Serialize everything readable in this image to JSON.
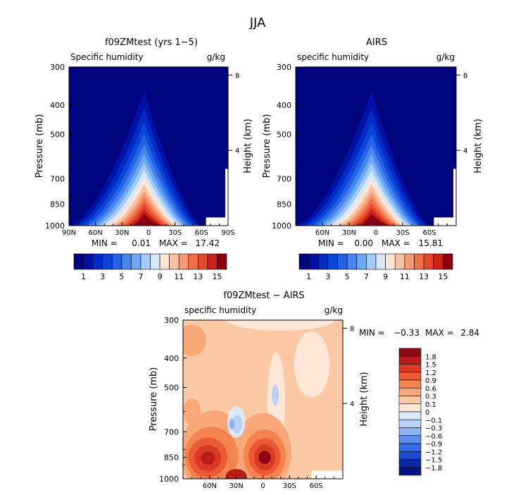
{
  "figure": {
    "title": "JJA"
  },
  "chart_data": [
    {
      "id": "model",
      "type": "heatmap",
      "title": "f09ZMtest (yrs 1−5)",
      "subtitle_left": "Specific humidity",
      "units": "g/kg",
      "ylabel": "Pressure (mb)",
      "ylabel_right": "Height (km)",
      "x_ticks": [
        "90N",
        "60N",
        "30N",
        "0",
        "30S",
        "60S",
        "90S"
      ],
      "x_tick_values": [
        90,
        60,
        30,
        0,
        -30,
        -60,
        -90
      ],
      "xlim": [
        90,
        -90
      ],
      "y_ticks": [
        "300",
        "400",
        "500",
        "700",
        "850",
        "1000"
      ],
      "y_tick_values": [
        300,
        400,
        500,
        700,
        850,
        1000
      ],
      "ylim": [
        300,
        1000
      ],
      "y_right_ticks": [
        "8",
        "4"
      ],
      "y_right_values": [
        8,
        4
      ],
      "min_label": "MIN =",
      "min_value": "0.01",
      "max_label": "MAX =",
      "max_value": "17.42",
      "peak": {
        "lat": 5,
        "value": 17.42
      },
      "contour_levels": [
        1,
        2,
        3,
        4,
        5,
        6,
        7,
        8,
        9,
        10,
        11,
        12,
        13,
        14,
        15,
        16
      ],
      "colorbar_labels": [
        "1",
        "3",
        "5",
        "7",
        "9",
        "11",
        "13",
        "15"
      ]
    },
    {
      "id": "obs",
      "type": "heatmap",
      "title": "AIRS",
      "subtitle_left": "specific humidity",
      "units": "g/kg",
      "ylabel": "Pressure (mb)",
      "ylabel_right": "Height (km)",
      "x_ticks": [
        "60N",
        "30N",
        "0",
        "30S",
        "60S"
      ],
      "x_tick_values": [
        60,
        30,
        0,
        -30,
        -60
      ],
      "xlim": [
        90,
        -90
      ],
      "y_ticks": [
        "300",
        "400",
        "500",
        "700",
        "850",
        "1000"
      ],
      "y_tick_values": [
        300,
        400,
        500,
        700,
        850,
        1000
      ],
      "ylim": [
        300,
        1000
      ],
      "y_right_ticks": [
        "8",
        "4"
      ],
      "y_right_values": [
        8,
        4
      ],
      "min_label": "MIN =",
      "min_value": "0.00",
      "max_label": "MAX =",
      "max_value": "15.81",
      "peak": {
        "lat": 5,
        "value": 15.81
      },
      "contour_levels": [
        1,
        2,
        3,
        4,
        5,
        6,
        7,
        8,
        9,
        10,
        11,
        12,
        13,
        14,
        15,
        16
      ],
      "colorbar_labels": [
        "1",
        "3",
        "5",
        "7",
        "9",
        "11",
        "13",
        "15"
      ]
    },
    {
      "id": "diff",
      "type": "heatmap",
      "title": "f09ZMtest − AIRS",
      "subtitle_left": "specific humidity",
      "units": "g/kg",
      "ylabel": "Pressure (mb)",
      "ylabel_right": "Height (km)",
      "x_ticks": [
        "60N",
        "30N",
        "0",
        "30S",
        "60S"
      ],
      "x_tick_values": [
        60,
        30,
        0,
        -30,
        -60
      ],
      "xlim": [
        90,
        -90
      ],
      "y_ticks": [
        "300",
        "400",
        "500",
        "700",
        "850",
        "1000"
      ],
      "y_tick_values": [
        300,
        400,
        500,
        700,
        850,
        1000
      ],
      "ylim": [
        300,
        1000
      ],
      "y_right_ticks": [
        "8",
        "4"
      ],
      "y_right_values": [
        8,
        4
      ],
      "min_label": "MIN =",
      "min_value": "−0.33",
      "max_label": "MAX =",
      "max_value": "2.84",
      "colorbar_labels": [
        "1.8",
        "1.5",
        "1.2",
        "0.9",
        "0.6",
        "0.3",
        "0.1",
        "0",
        "−0.1",
        "−0.3",
        "−0.6",
        "−0.9",
        "−1.2",
        "−1.5",
        "−1.8"
      ],
      "colorbar_levels": [
        1.8,
        1.5,
        1.2,
        0.9,
        0.6,
        0.3,
        0.1,
        0,
        -0.1,
        -0.3,
        -0.6,
        -0.9,
        -1.2,
        -1.5,
        -1.8
      ]
    }
  ],
  "palettes": {
    "seq16": [
      "#00047e",
      "#0011a6",
      "#002bc4",
      "#0c46d8",
      "#2563e6",
      "#4485ef",
      "#6fa8f5",
      "#a3cbf9",
      "#d7e8fb",
      "#fde6d6",
      "#fac2a3",
      "#f79a74",
      "#f0704a",
      "#e54a2c",
      "#c8221b",
      "#8b0010"
    ],
    "div16": [
      "#8f0615",
      "#b91c1c",
      "#d83a22",
      "#ec5a35",
      "#f4834f",
      "#f8a878",
      "#fbc9a6",
      "#fde6d6",
      "#dde9f9",
      "#b9d2f6",
      "#8eb3f1",
      "#5d8df0",
      "#346be6",
      "#1b48cc",
      "#0b2ca6",
      "#04137d"
    ]
  }
}
